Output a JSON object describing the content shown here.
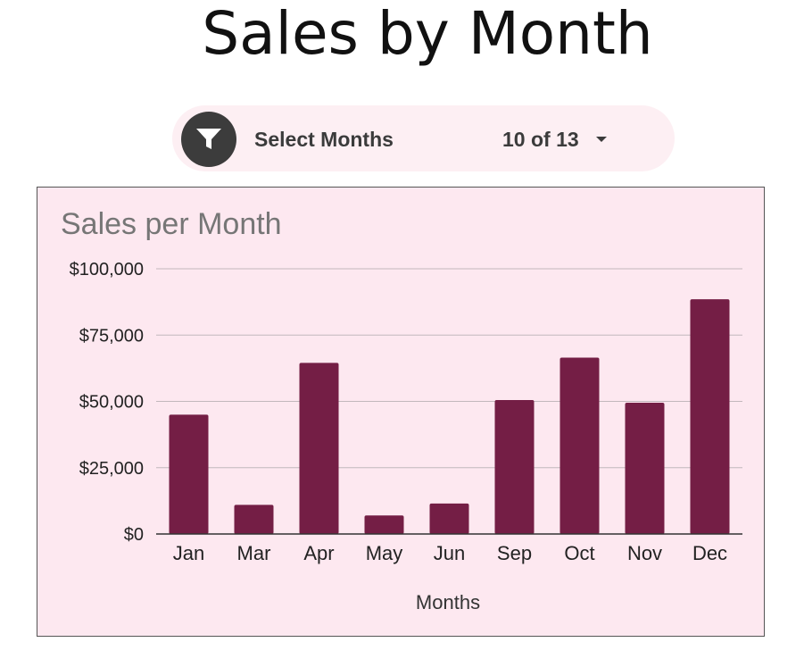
{
  "page": {
    "title": "Sales by Month"
  },
  "filter": {
    "label": "Select Months",
    "count": "10 of 13",
    "icon": "filter-icon"
  },
  "colors": {
    "bar": "#741e45",
    "card_bg": "#fde8f0",
    "filter_bg": "#fdeff3",
    "icon_bg": "#3c3c3c"
  },
  "chart_data": {
    "type": "bar",
    "title": "Sales per Month",
    "xlabel": "Months",
    "ylabel": "",
    "categories": [
      "Jan",
      "Mar",
      "Apr",
      "May",
      "Jun",
      "Sep",
      "Oct",
      "Nov",
      "Dec"
    ],
    "values": [
      45000,
      11000,
      64500,
      7000,
      11500,
      50500,
      66500,
      49500,
      88500
    ],
    "ylim": [
      0,
      100000
    ],
    "yticks": [
      0,
      25000,
      50000,
      75000,
      100000
    ],
    "ytick_labels": [
      "$0",
      "$25,000",
      "$50,000",
      "$75,000",
      "$100,000"
    ],
    "grid": true,
    "legend": "none"
  }
}
